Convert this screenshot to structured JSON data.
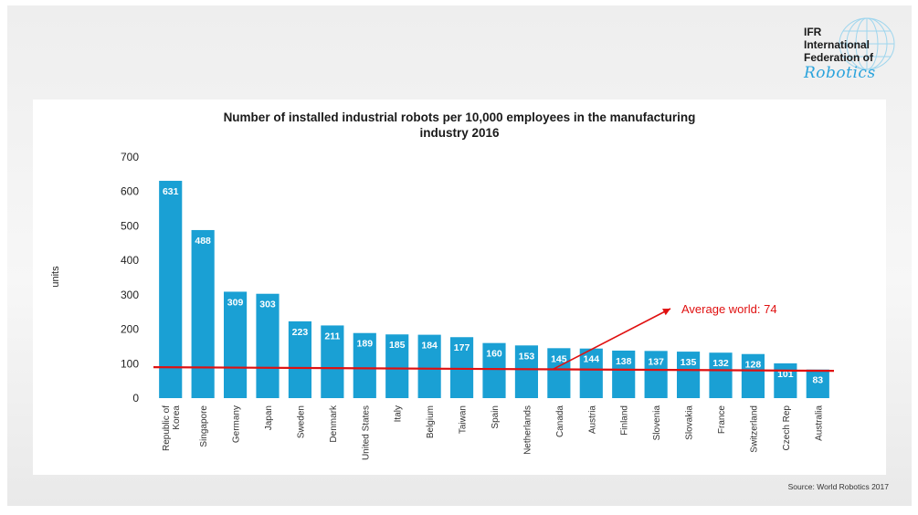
{
  "logo": {
    "line1": "IFR",
    "line2": "International",
    "line3": "Federation of",
    "line4": "Robotics"
  },
  "colors": {
    "bar": "#1aa0d4",
    "average_line": "#e01010",
    "bar_label": "#ffffff"
  },
  "source": "Source: World Robotics 2017",
  "chart_data": {
    "type": "bar",
    "title_line1": "Number of installed industrial robots per 10,000 employees in the manufacturing",
    "title_line2": "industry 2016",
    "xlabel": "",
    "ylabel": "units",
    "ylim": [
      0,
      700
    ],
    "yticks": [
      0,
      100,
      200,
      300,
      400,
      500,
      600,
      700
    ],
    "grid": false,
    "categories": [
      "Republic of Korea",
      "Singapore",
      "Germany",
      "Japan",
      "Sweden",
      "Denmark",
      "United States",
      "Italy",
      "Belgium",
      "Taiwan",
      "Spain",
      "Netherlands",
      "Canada",
      "Austria",
      "Finland",
      "Slovenia",
      "Slovakia",
      "France",
      "Switzerland",
      "Czech Rep",
      "Australia"
    ],
    "category_label_lines": [
      [
        "Republic of",
        "Korea"
      ],
      [
        "Singapore"
      ],
      [
        "Germany"
      ],
      [
        "Japan"
      ],
      [
        "Sweden"
      ],
      [
        "Denmark"
      ],
      [
        "United States"
      ],
      [
        "Italy"
      ],
      [
        "Belgium"
      ],
      [
        "Taiwan"
      ],
      [
        "Spain"
      ],
      [
        "Netherlands"
      ],
      [
        "Canada"
      ],
      [
        "Austria"
      ],
      [
        "Finland"
      ],
      [
        "Slovenia"
      ],
      [
        "Slovakia"
      ],
      [
        "France"
      ],
      [
        "Switzerland"
      ],
      [
        "Czech Rep"
      ],
      [
        "Australia"
      ]
    ],
    "values": [
      631,
      488,
      309,
      303,
      223,
      211,
      189,
      185,
      184,
      177,
      160,
      153,
      145,
      144,
      138,
      137,
      135,
      132,
      128,
      101,
      83
    ],
    "average": {
      "label": "Average world: 74",
      "value": 74
    }
  }
}
